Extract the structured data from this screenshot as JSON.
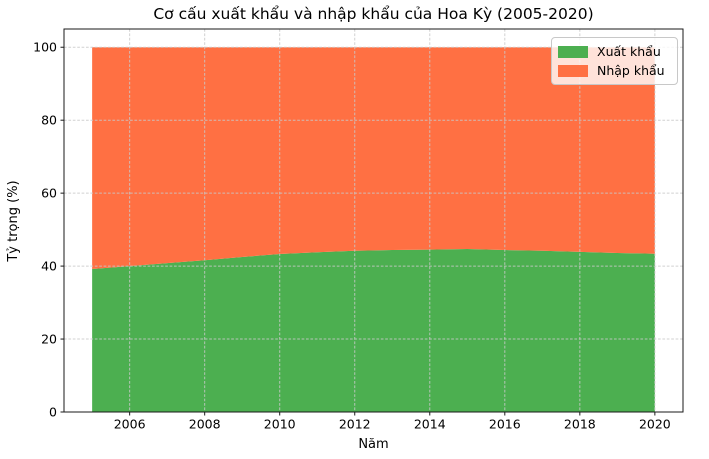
{
  "title": "Cơ cấu xuất khẩu và nhập khẩu của Hoa Kỳ (2005-2020)",
  "chart_data": {
    "type": "area",
    "stacked": true,
    "percent_stacked": true,
    "title": "Cơ cấu xuất khẩu và nhập khẩu của Hoa Kỳ (2005-2020)",
    "xlabel": "Năm",
    "ylabel": "Tỷ trọng (%)",
    "x": [
      2005,
      2006,
      2007,
      2008,
      2009,
      2010,
      2011,
      2012,
      2013,
      2014,
      2015,
      2016,
      2017,
      2018,
      2019,
      2020
    ],
    "series": [
      {
        "id": "xuat-khau",
        "name": "Xuất khẩu",
        "color": "#4caf50",
        "values": [
          39.2,
          40.0,
          40.8,
          41.6,
          42.5,
          43.3,
          43.8,
          44.2,
          44.4,
          44.5,
          44.7,
          44.4,
          44.2,
          43.9,
          43.6,
          43.4
        ]
      },
      {
        "id": "nhap-khau",
        "name": "Nhập khẩu",
        "color": "#ff7043",
        "values": [
          60.8,
          60.0,
          59.2,
          58.4,
          57.5,
          56.7,
          56.2,
          55.8,
          55.6,
          55.5,
          55.3,
          55.6,
          55.8,
          56.1,
          56.4,
          56.6
        ]
      }
    ],
    "xlim": [
      2004.25,
      2020.75
    ],
    "ylim": [
      0,
      105
    ],
    "xticks": [
      2006,
      2008,
      2010,
      2012,
      2014,
      2016,
      2018,
      2020
    ],
    "yticks": [
      0,
      20,
      40,
      60,
      80,
      100
    ],
    "grid": true,
    "grid_style": "dashed",
    "legend_position": "upper right",
    "colors": {
      "grid": "#c9c9c9",
      "spine": "#1a1a1a",
      "text": "#000000",
      "legend_border": "#c8c8c8"
    }
  }
}
